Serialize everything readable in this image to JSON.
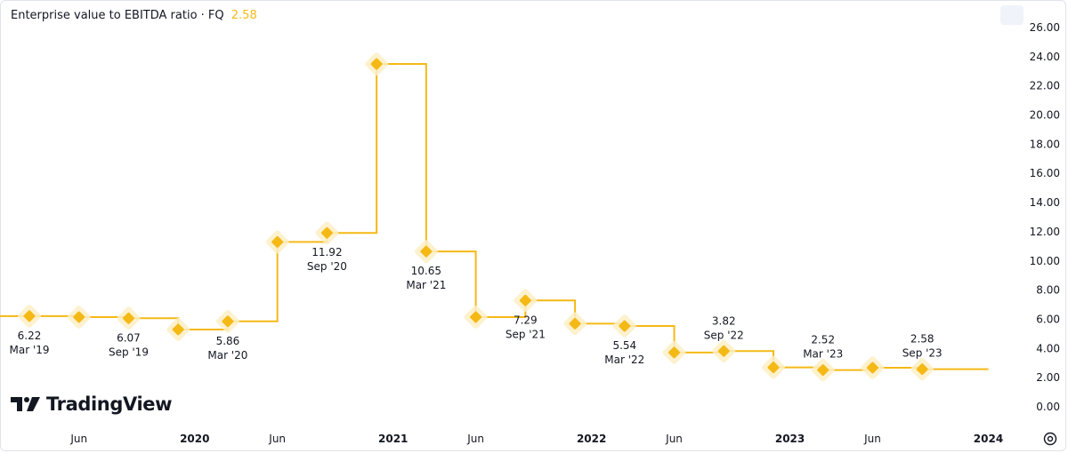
{
  "legend": {
    "title": "Enterprise value to EBITDA ratio · FQ",
    "value": "2.58"
  },
  "brand": {
    "name": "TradingView"
  },
  "icons": {
    "settings": "settings-icon",
    "camera": "camera-icon",
    "logo": "tradingview-logo-icon"
  },
  "colors": {
    "line": "#f5b916",
    "halo": "#fdeec5",
    "text": "#131722"
  },
  "chart_data": {
    "type": "line",
    "step": true,
    "title": "Enterprise value to EBITDA ratio · FQ",
    "ylim": [
      0,
      26
    ],
    "y_ticks": [
      "0.00",
      "2.00",
      "4.00",
      "6.00",
      "8.00",
      "10.00",
      "12.00",
      "14.00",
      "16.00",
      "18.00",
      "20.00",
      "22.00",
      "24.00",
      "26.00"
    ],
    "x_ticks": [
      "Jun",
      "2020",
      "Jun",
      "2021",
      "Jun",
      "2022",
      "Jun",
      "2023",
      "Jun",
      "2024"
    ],
    "series": [
      {
        "values": [
          {
            "x": "2019-03",
            "y": 6.22
          },
          {
            "x": "2019-06",
            "y": 6.15
          },
          {
            "x": "2019-09",
            "y": 6.07
          },
          {
            "x": "2019-12",
            "y": 5.3
          },
          {
            "x": "2020-03",
            "y": 5.86
          },
          {
            "x": "2020-06",
            "y": 11.3
          },
          {
            "x": "2020-09",
            "y": 11.92
          },
          {
            "x": "2020-12",
            "y": 23.5
          },
          {
            "x": "2021-03",
            "y": 10.65
          },
          {
            "x": "2021-06",
            "y": 6.15
          },
          {
            "x": "2021-09",
            "y": 7.29
          },
          {
            "x": "2021-12",
            "y": 5.7
          },
          {
            "x": "2022-03",
            "y": 5.54
          },
          {
            "x": "2022-06",
            "y": 3.72
          },
          {
            "x": "2022-09",
            "y": 3.82
          },
          {
            "x": "2022-12",
            "y": 2.7
          },
          {
            "x": "2023-03",
            "y": 2.52
          },
          {
            "x": "2023-06",
            "y": 2.68
          },
          {
            "x": "2023-09",
            "y": 2.58
          }
        ]
      }
    ],
    "point_labels": [
      {
        "x": "2019-03",
        "value": "6.22",
        "date": "Mar '19",
        "pos": "below"
      },
      {
        "x": "2019-09",
        "value": "6.07",
        "date": "Sep '19",
        "pos": "below"
      },
      {
        "x": "2020-03",
        "value": "5.86",
        "date": "Mar '20",
        "pos": "below"
      },
      {
        "x": "2020-09",
        "value": "11.92",
        "date": "Sep '20",
        "pos": "below"
      },
      {
        "x": "2021-03",
        "value": "10.65",
        "date": "Mar '21",
        "pos": "below"
      },
      {
        "x": "2021-09",
        "value": "7.29",
        "date": "Sep '21",
        "pos": "below"
      },
      {
        "x": "2022-03",
        "value": "5.54",
        "date": "Mar '22",
        "pos": "below"
      },
      {
        "x": "2022-09",
        "value": "3.82",
        "date": "Sep '22",
        "pos": "above"
      },
      {
        "x": "2023-03",
        "value": "2.52",
        "date": "Mar '23",
        "pos": "above"
      },
      {
        "x": "2023-09",
        "value": "2.58",
        "date": "Sep '23",
        "pos": "above"
      }
    ],
    "line_end_x": "2024-01"
  }
}
